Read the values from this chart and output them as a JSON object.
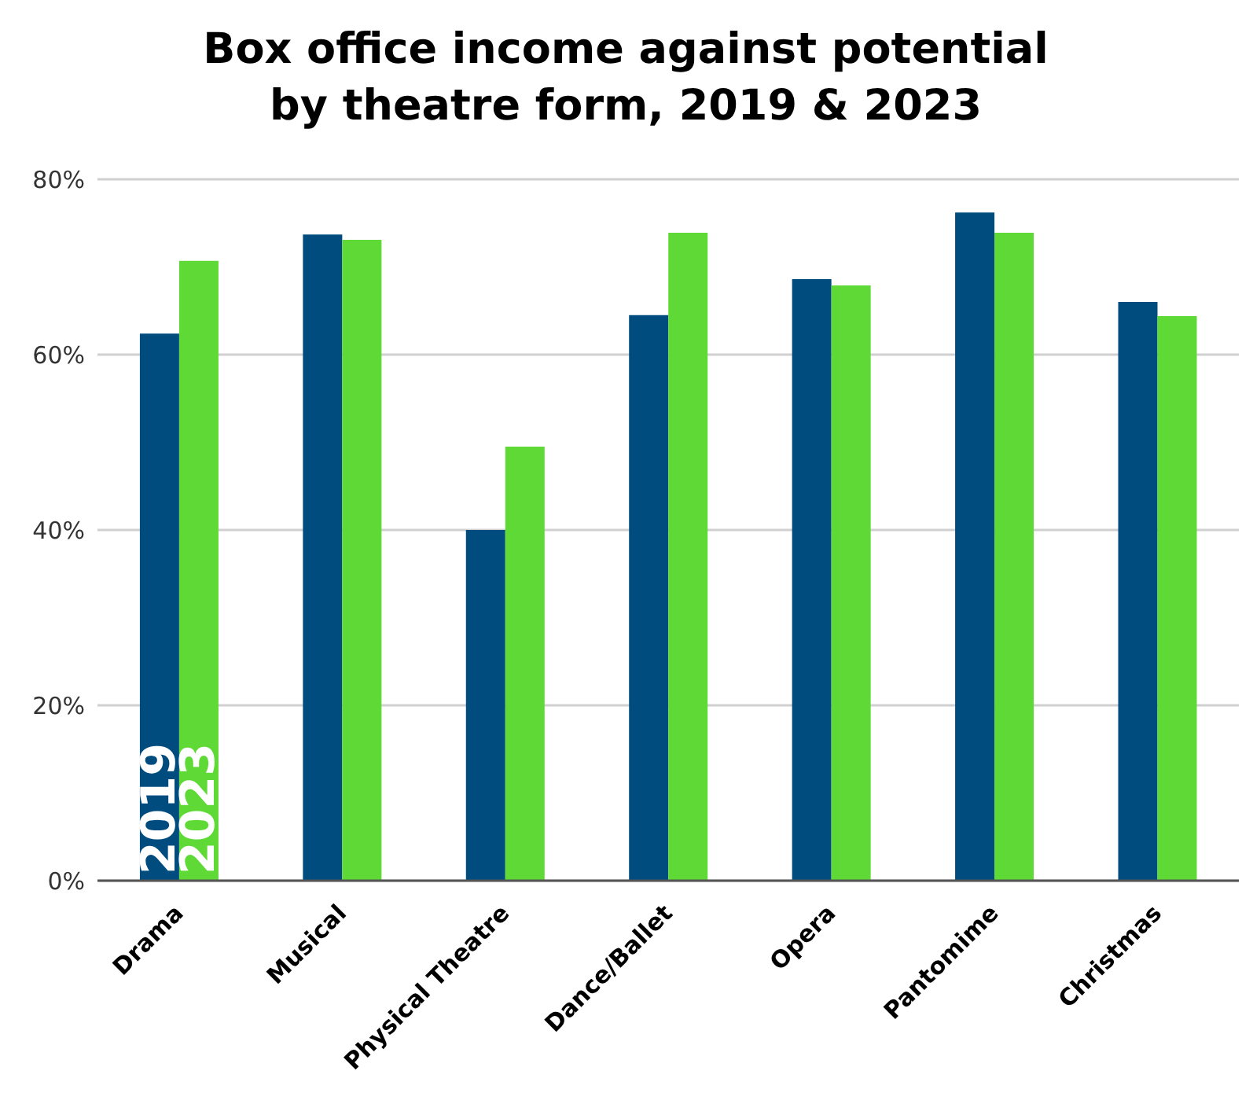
{
  "chart_data": {
    "type": "bar",
    "title": "Box office income against potential\nby theatre form, 2019 & 2023",
    "categories": [
      "Drama",
      "Musical",
      "Physical Theatre",
      "Dance/Ballet",
      "Opera",
      "Pantomime",
      "Christmas"
    ],
    "series": [
      {
        "name": "2019",
        "color": "#004c7f",
        "values": [
          62.4,
          73.7,
          40.0,
          64.5,
          68.6,
          76.2,
          66.0
        ]
      },
      {
        "name": "2023",
        "color": "#5fd936",
        "values": [
          70.7,
          73.1,
          49.5,
          73.9,
          67.9,
          73.9,
          64.4
        ]
      }
    ],
    "ylim": [
      0,
      80
    ],
    "yticks": [
      {
        "value": 0,
        "label": "0%"
      },
      {
        "value": 20,
        "label": "20%"
      },
      {
        "value": 40,
        "label": "40%"
      },
      {
        "value": 60,
        "label": "60%"
      },
      {
        "value": 80,
        "label": "80%"
      }
    ],
    "grid": "y",
    "legend": false
  }
}
